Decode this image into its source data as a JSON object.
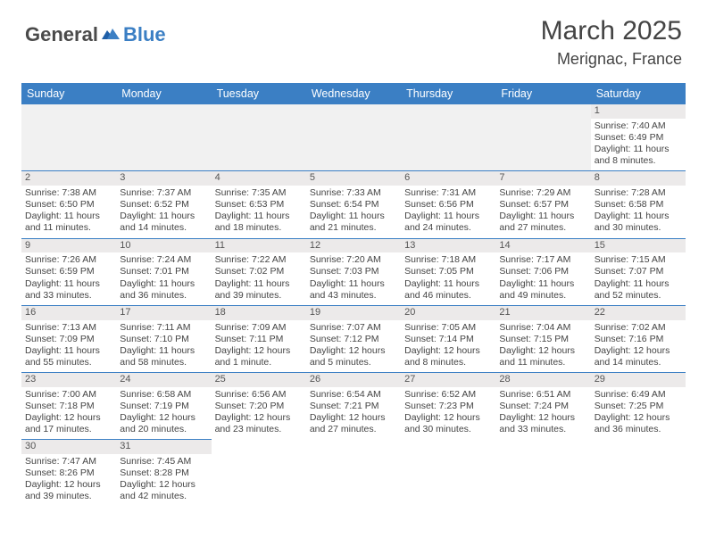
{
  "logo": {
    "text1": "General",
    "text2": "Blue"
  },
  "title": "March 2025",
  "location": "Merignac, France",
  "colors": {
    "header_bg": "#3b7fc4",
    "header_text": "#ffffff",
    "daynum_bg": "#eceaea",
    "body_text": "#444444",
    "border": "#3b7fc4",
    "blank_bg": "#f1f1f1"
  },
  "days_of_week": [
    "Sunday",
    "Monday",
    "Tuesday",
    "Wednesday",
    "Thursday",
    "Friday",
    "Saturday"
  ],
  "weeks": [
    [
      null,
      null,
      null,
      null,
      null,
      null,
      {
        "n": "1",
        "sr": "7:40 AM",
        "ss": "6:49 PM",
        "dl1": "11 hours",
        "dl2": "and 8 minutes."
      }
    ],
    [
      {
        "n": "2",
        "sr": "7:38 AM",
        "ss": "6:50 PM",
        "dl1": "11 hours",
        "dl2": "and 11 minutes."
      },
      {
        "n": "3",
        "sr": "7:37 AM",
        "ss": "6:52 PM",
        "dl1": "11 hours",
        "dl2": "and 14 minutes."
      },
      {
        "n": "4",
        "sr": "7:35 AM",
        "ss": "6:53 PM",
        "dl1": "11 hours",
        "dl2": "and 18 minutes."
      },
      {
        "n": "5",
        "sr": "7:33 AM",
        "ss": "6:54 PM",
        "dl1": "11 hours",
        "dl2": "and 21 minutes."
      },
      {
        "n": "6",
        "sr": "7:31 AM",
        "ss": "6:56 PM",
        "dl1": "11 hours",
        "dl2": "and 24 minutes."
      },
      {
        "n": "7",
        "sr": "7:29 AM",
        "ss": "6:57 PM",
        "dl1": "11 hours",
        "dl2": "and 27 minutes."
      },
      {
        "n": "8",
        "sr": "7:28 AM",
        "ss": "6:58 PM",
        "dl1": "11 hours",
        "dl2": "and 30 minutes."
      }
    ],
    [
      {
        "n": "9",
        "sr": "7:26 AM",
        "ss": "6:59 PM",
        "dl1": "11 hours",
        "dl2": "and 33 minutes."
      },
      {
        "n": "10",
        "sr": "7:24 AM",
        "ss": "7:01 PM",
        "dl1": "11 hours",
        "dl2": "and 36 minutes."
      },
      {
        "n": "11",
        "sr": "7:22 AM",
        "ss": "7:02 PM",
        "dl1": "11 hours",
        "dl2": "and 39 minutes."
      },
      {
        "n": "12",
        "sr": "7:20 AM",
        "ss": "7:03 PM",
        "dl1": "11 hours",
        "dl2": "and 43 minutes."
      },
      {
        "n": "13",
        "sr": "7:18 AM",
        "ss": "7:05 PM",
        "dl1": "11 hours",
        "dl2": "and 46 minutes."
      },
      {
        "n": "14",
        "sr": "7:17 AM",
        "ss": "7:06 PM",
        "dl1": "11 hours",
        "dl2": "and 49 minutes."
      },
      {
        "n": "15",
        "sr": "7:15 AM",
        "ss": "7:07 PM",
        "dl1": "11 hours",
        "dl2": "and 52 minutes."
      }
    ],
    [
      {
        "n": "16",
        "sr": "7:13 AM",
        "ss": "7:09 PM",
        "dl1": "11 hours",
        "dl2": "and 55 minutes."
      },
      {
        "n": "17",
        "sr": "7:11 AM",
        "ss": "7:10 PM",
        "dl1": "11 hours",
        "dl2": "and 58 minutes."
      },
      {
        "n": "18",
        "sr": "7:09 AM",
        "ss": "7:11 PM",
        "dl1": "12 hours",
        "dl2": "and 1 minute."
      },
      {
        "n": "19",
        "sr": "7:07 AM",
        "ss": "7:12 PM",
        "dl1": "12 hours",
        "dl2": "and 5 minutes."
      },
      {
        "n": "20",
        "sr": "7:05 AM",
        "ss": "7:14 PM",
        "dl1": "12 hours",
        "dl2": "and 8 minutes."
      },
      {
        "n": "21",
        "sr": "7:04 AM",
        "ss": "7:15 PM",
        "dl1": "12 hours",
        "dl2": "and 11 minutes."
      },
      {
        "n": "22",
        "sr": "7:02 AM",
        "ss": "7:16 PM",
        "dl1": "12 hours",
        "dl2": "and 14 minutes."
      }
    ],
    [
      {
        "n": "23",
        "sr": "7:00 AM",
        "ss": "7:18 PM",
        "dl1": "12 hours",
        "dl2": "and 17 minutes."
      },
      {
        "n": "24",
        "sr": "6:58 AM",
        "ss": "7:19 PM",
        "dl1": "12 hours",
        "dl2": "and 20 minutes."
      },
      {
        "n": "25",
        "sr": "6:56 AM",
        "ss": "7:20 PM",
        "dl1": "12 hours",
        "dl2": "and 23 minutes."
      },
      {
        "n": "26",
        "sr": "6:54 AM",
        "ss": "7:21 PM",
        "dl1": "12 hours",
        "dl2": "and 27 minutes."
      },
      {
        "n": "27",
        "sr": "6:52 AM",
        "ss": "7:23 PM",
        "dl1": "12 hours",
        "dl2": "and 30 minutes."
      },
      {
        "n": "28",
        "sr": "6:51 AM",
        "ss": "7:24 PM",
        "dl1": "12 hours",
        "dl2": "and 33 minutes."
      },
      {
        "n": "29",
        "sr": "6:49 AM",
        "ss": "7:25 PM",
        "dl1": "12 hours",
        "dl2": "and 36 minutes."
      }
    ],
    [
      {
        "n": "30",
        "sr": "7:47 AM",
        "ss": "8:26 PM",
        "dl1": "12 hours",
        "dl2": "and 39 minutes."
      },
      {
        "n": "31",
        "sr": "7:45 AM",
        "ss": "8:28 PM",
        "dl1": "12 hours",
        "dl2": "and 42 minutes."
      },
      null,
      null,
      null,
      null,
      null
    ]
  ],
  "labels": {
    "sunrise": "Sunrise:",
    "sunset": "Sunset:",
    "daylight": "Daylight:"
  }
}
